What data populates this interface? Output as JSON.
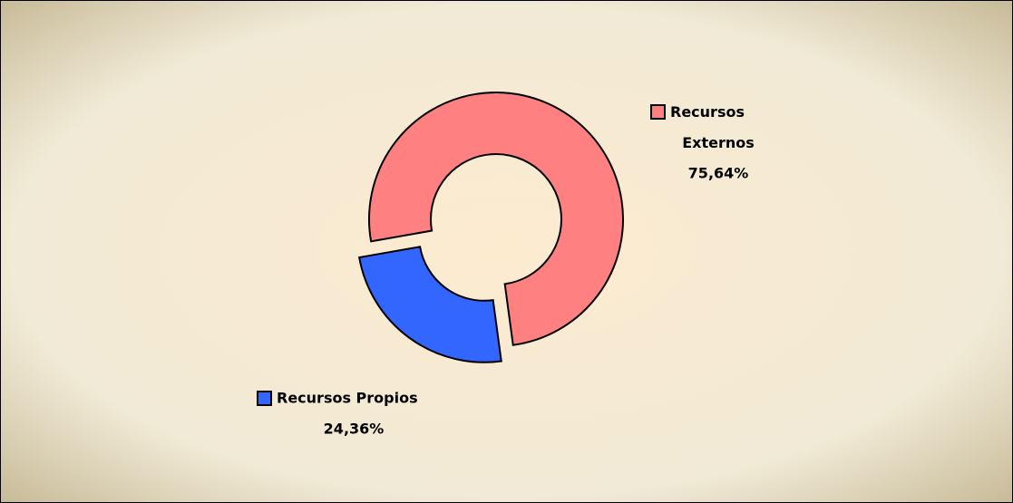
{
  "chart_data": {
    "type": "donut",
    "categories": [
      "Recursos Externos",
      "Recursos Propios"
    ],
    "values": [
      75.64,
      24.36
    ],
    "value_labels": [
      "75,64%",
      "24,36%"
    ],
    "colors": [
      "#ff8080",
      "#3366ff"
    ]
  }
}
